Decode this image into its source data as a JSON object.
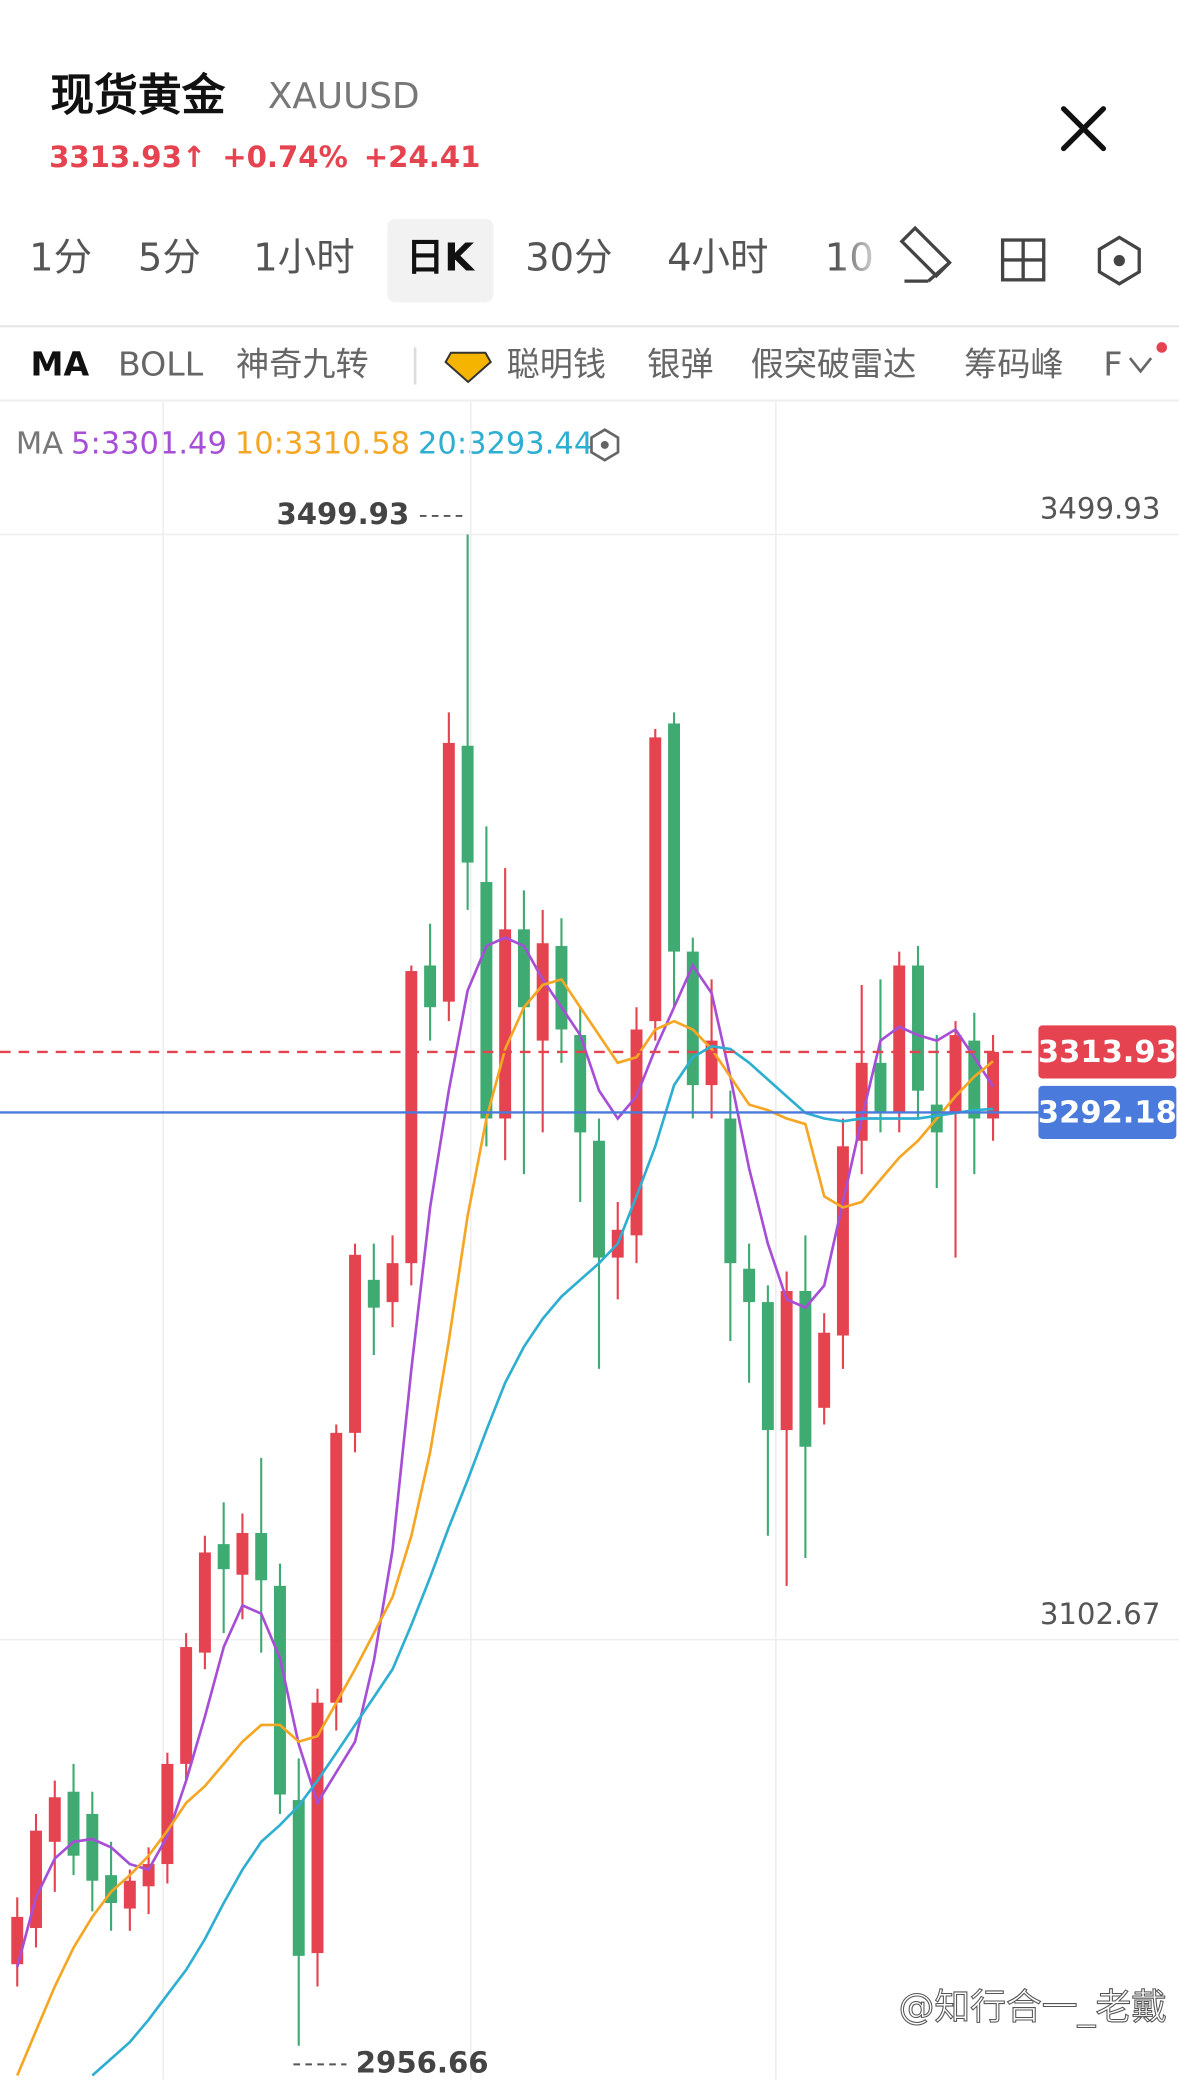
{
  "header": {
    "title": "现货黄金",
    "symbol": "XAUUSD",
    "price": "3313.93↑",
    "change_pct": "+0.74%",
    "change": "+24.41"
  },
  "tabs": [
    "1分",
    "5分",
    "1小时",
    "日K",
    "30分",
    "4小时",
    "10"
  ],
  "indicators": [
    "MA",
    "BOLL",
    "神奇九转",
    "聪明钱",
    "银弹",
    "假突破雷达",
    "筹码峰",
    "F"
  ],
  "watermark": "@知行合一_老戴",
  "chart_data": {
    "type": "candlestick",
    "ma_title": "MA",
    "up_color": "#e5434f",
    "down_color": "#3faa72",
    "ylim": [
      2944.37,
      3547.62
    ],
    "yticks": [
      3499.93,
      3102.67
    ],
    "grid": true,
    "open": [
      2986,
      2999,
      3030,
      3048,
      3040,
      3018,
      3006,
      3014,
      3022,
      3058,
      3098,
      3137,
      3126,
      3141,
      3122,
      3045,
      2990,
      3080,
      3177,
      3232,
      3224,
      3238,
      3345,
      3332,
      3424,
      3375,
      3290,
      3358,
      3318,
      3352,
      3320,
      3282,
      3240,
      3248,
      3325,
      3432,
      3350,
      3302,
      3290,
      3236,
      3224,
      3178,
      3228,
      3186,
      3212,
      3282,
      3310,
      3292,
      3345,
      3295,
      3292,
      3318,
      3290
    ],
    "high": [
      3010,
      3040,
      3052,
      3058,
      3048,
      3030,
      3020,
      3028,
      3062,
      3105,
      3140,
      3152,
      3148,
      3168,
      3130,
      3060,
      3085,
      3180,
      3245,
      3245,
      3248,
      3345,
      3360,
      3436,
      3499.93,
      3395,
      3380,
      3372,
      3365,
      3362,
      3330,
      3290,
      3260,
      3330,
      3430,
      3436,
      3355,
      3340,
      3300,
      3245,
      3230,
      3235,
      3248,
      3220,
      3290,
      3338,
      3340,
      3350,
      3352,
      3320,
      3325,
      3328,
      3320
    ],
    "low": [
      2978,
      2992,
      3012,
      3018,
      3005,
      2998,
      2998,
      3004,
      3015,
      3052,
      3092,
      3105,
      3110,
      3098,
      3040,
      2956.66,
      2978,
      3070,
      3170,
      3205,
      3215,
      3230,
      3318,
      3325,
      3365,
      3280,
      3275,
      3270,
      3285,
      3310,
      3260,
      3200,
      3225,
      3238,
      3318,
      3330,
      3290,
      3290,
      3210,
      3195,
      3140,
      3122,
      3132,
      3180,
      3200,
      3270,
      3285,
      3285,
      3290,
      3265,
      3240,
      3270,
      3282
    ],
    "close": [
      3003,
      3034,
      3046,
      3025,
      3016,
      3008,
      3016,
      3022,
      3058,
      3100,
      3134,
      3128,
      3141,
      3124,
      3047,
      2989,
      3080,
      3177,
      3241,
      3222,
      3238,
      3343,
      3330,
      3425,
      3382,
      3290,
      3358,
      3330,
      3353,
      3322,
      3285,
      3240,
      3250,
      3322,
      3427,
      3350,
      3302,
      3318,
      3238,
      3224,
      3178,
      3228,
      3172,
      3213,
      3280,
      3310,
      3292,
      3345,
      3300,
      3285,
      3320,
      3290,
      3313.93
    ],
    "series": [
      {
        "name": "5",
        "label": "5:3301.49",
        "color": "#a64fd6",
        "values": [
          2985,
          3010,
          3024,
          3030,
          3031,
          3028,
          3022,
          3020,
          3032,
          3052,
          3075,
          3100,
          3115,
          3112,
          3096,
          3065,
          3044,
          3055,
          3066,
          3095,
          3135,
          3200,
          3258,
          3300,
          3336,
          3352,
          3355,
          3352,
          3340,
          3330,
          3320,
          3300,
          3290,
          3298,
          3315,
          3330,
          3345,
          3335,
          3305,
          3272,
          3245,
          3225,
          3222,
          3230,
          3260,
          3290,
          3318,
          3323,
          3320,
          3318,
          3322,
          3312,
          3301.49
        ]
      },
      {
        "name": "10",
        "label": "10:3310.58",
        "color": "#f5a623",
        "values": [
          2946,
          2962,
          2978,
          2992,
          3003,
          3012,
          3018,
          3025,
          3034,
          3044,
          3050,
          3058,
          3066,
          3072,
          3072,
          3066,
          3068,
          3080,
          3092,
          3105,
          3118,
          3140,
          3170,
          3210,
          3255,
          3290,
          3315,
          3330,
          3338,
          3340,
          3330,
          3320,
          3310,
          3312,
          3322,
          3325,
          3322,
          3315,
          3305,
          3295,
          3293,
          3290,
          3288,
          3262,
          3258,
          3260,
          3268,
          3276,
          3282,
          3290,
          3298,
          3305,
          3310.58
        ]
      },
      {
        "name": "20",
        "label": "20:3293.44",
        "color": "#2eaed0",
        "values": [
          null,
          null,
          null,
          null,
          2946,
          2952,
          2958,
          2966,
          2975,
          2984,
          2995,
          3008,
          3020,
          3030,
          3036,
          3043,
          3052,
          3062,
          3072,
          3082,
          3092,
          3108,
          3125,
          3143,
          3160,
          3178,
          3195,
          3208,
          3218,
          3226,
          3232,
          3238,
          3245,
          3262,
          3280,
          3302,
          3312,
          3316,
          3315,
          3310,
          3304,
          3298,
          3292,
          3290,
          3289,
          3290,
          3290,
          3290,
          3290,
          3291,
          3292,
          3293,
          3293.44
        ]
      }
    ],
    "price_lines": [
      {
        "value": 3313.93,
        "color": "#e5434f",
        "dashed": true
      },
      {
        "value": 3292.18,
        "color": "#4a7bdc",
        "dashed": false
      }
    ]
  }
}
